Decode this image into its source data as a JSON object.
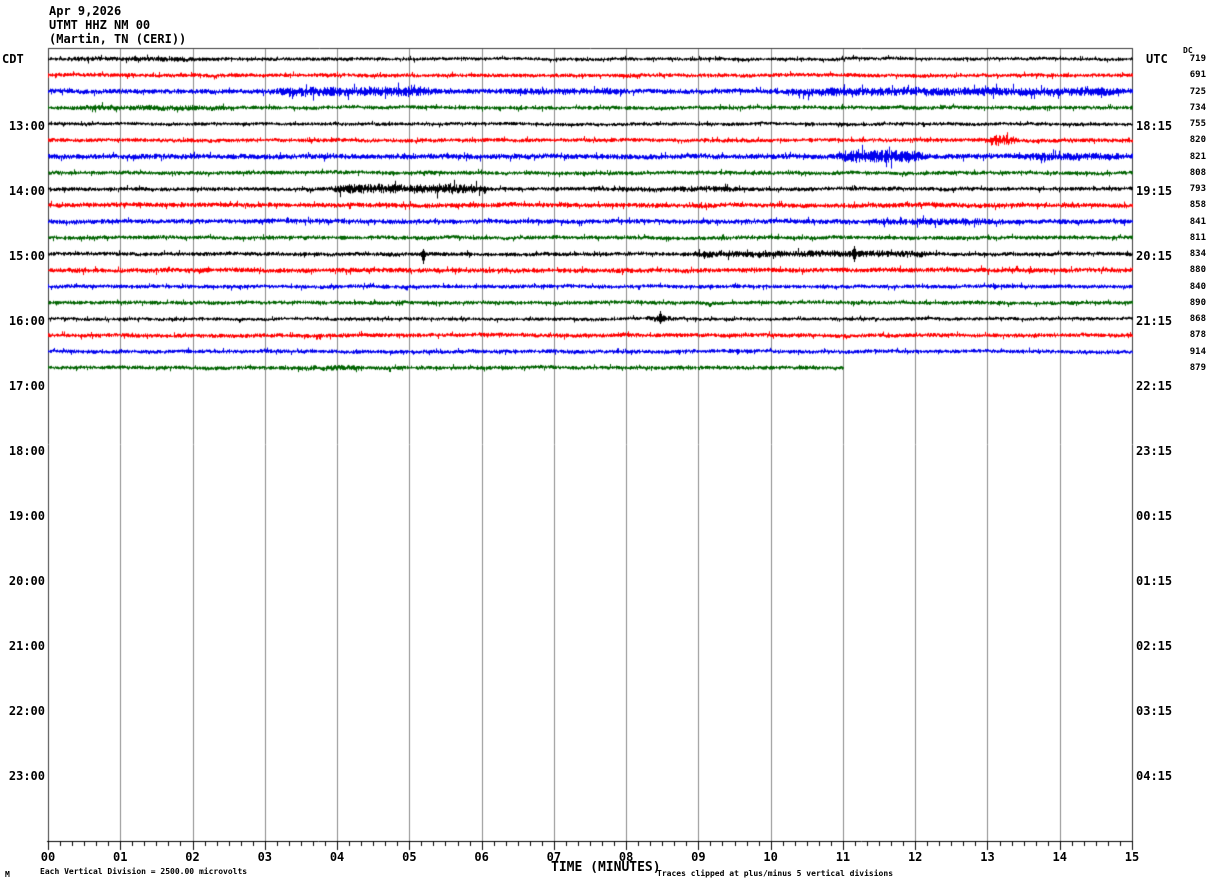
{
  "header": {
    "date": "Apr 9,2026",
    "station": "UTMT HHZ NM 00",
    "location": "(Martin, TN (CERI))"
  },
  "axis_labels": {
    "left": "CDT",
    "right": "UTC",
    "dc": "DC"
  },
  "x_axis": {
    "title": "TIME (MINUTES)",
    "ticks": [
      "00",
      "01",
      "02",
      "03",
      "04",
      "05",
      "06",
      "07",
      "08",
      "09",
      "10",
      "11",
      "12",
      "13",
      "14",
      "15"
    ]
  },
  "left_times": [
    "13:00",
    "14:00",
    "15:00",
    "16:00",
    "17:00",
    "18:00",
    "19:00",
    "20:00",
    "21:00",
    "22:00",
    "23:00"
  ],
  "right_times": [
    "18:15",
    "19:15",
    "20:15",
    "21:15",
    "22:15",
    "23:15",
    "00:15",
    "01:15",
    "02:15",
    "03:15",
    "04:15"
  ],
  "footer": {
    "watermark": "M",
    "division_note": "Each Vertical Division = 2500.00 microvolts",
    "clip_note": "Traces clipped at plus/minus 5 vertical divisions"
  },
  "colors": {
    "black": "#000000",
    "red": "#ff0000",
    "blue": "#0000ee",
    "green": "#006400",
    "grid": "#8a8a8a",
    "border": "#3a3a3a",
    "axis": "#000000"
  },
  "chart_data": {
    "type": "line",
    "title": "UTMT HHZ NM 00 (Martin, TN (CERI)) Apr 9,2026",
    "xlabel": "TIME (MINUTES)",
    "x_range_minutes": [
      0,
      15
    ],
    "minutes_per_row": 15,
    "grid": "vertical lines at each minute",
    "traces_clipped_at_divisions": 5,
    "microvolts_per_division": 2500.0,
    "hour_labels_cdt": [
      "13:00",
      "14:00",
      "15:00",
      "16:00",
      "17:00",
      "18:00",
      "19:00",
      "20:00",
      "21:00",
      "22:00",
      "23:00"
    ],
    "hour_labels_utc": [
      "18:15",
      "19:15",
      "20:15",
      "21:15",
      "22:15",
      "23:15",
      "00:15",
      "01:15",
      "02:15",
      "03:15",
      "04:15"
    ],
    "dc_values": [
      719,
      691,
      725,
      734,
      755,
      820,
      821,
      808,
      793,
      858,
      841,
      811,
      834,
      880,
      840,
      890,
      868,
      878,
      914,
      879
    ],
    "traces": [
      {
        "color": "black",
        "dc": 719,
        "start_min": 0,
        "end_min": 15,
        "amp": 1.3,
        "segments": [
          [
            0.2,
            2.2,
            1.4
          ]
        ],
        "spikes": []
      },
      {
        "color": "red",
        "dc": 691,
        "start_min": 0,
        "end_min": 15,
        "amp": 1.5,
        "segments": [],
        "spikes": []
      },
      {
        "color": "blue",
        "dc": 725,
        "start_min": 0,
        "end_min": 15,
        "amp": 1.9,
        "segments": [
          [
            3.1,
            5.4,
            1.9
          ],
          [
            6.3,
            8.0,
            1.3
          ],
          [
            10.2,
            14.9,
            1.7
          ]
        ],
        "spikes": []
      },
      {
        "color": "green",
        "dc": 734,
        "start_min": 0,
        "end_min": 15,
        "amp": 1.5,
        "segments": [
          [
            0.3,
            2.5,
            1.4
          ]
        ],
        "spikes": []
      },
      {
        "color": "black",
        "dc": 755,
        "start_min": 0,
        "end_min": 15,
        "amp": 1.3,
        "segments": [],
        "spikes": []
      },
      {
        "color": "red",
        "dc": 820,
        "start_min": 0,
        "end_min": 15,
        "amp": 1.5,
        "segments": [
          [
            12.95,
            13.45,
            3.0
          ]
        ],
        "spikes": []
      },
      {
        "color": "blue",
        "dc": 821,
        "start_min": 0,
        "end_min": 15,
        "amp": 2.0,
        "segments": [
          [
            10.9,
            12.15,
            2.4
          ],
          [
            13.5,
            14.9,
            1.5
          ]
        ],
        "spikes": []
      },
      {
        "color": "green",
        "dc": 808,
        "start_min": 0,
        "end_min": 15,
        "amp": 1.5,
        "segments": [],
        "spikes": []
      },
      {
        "color": "black",
        "dc": 793,
        "start_min": 0,
        "end_min": 15,
        "amp": 1.5,
        "segments": [
          [
            3.85,
            6.1,
            2.4
          ],
          [
            7.8,
            9.6,
            1.4
          ]
        ],
        "spikes": []
      },
      {
        "color": "red",
        "dc": 858,
        "start_min": 0,
        "end_min": 15,
        "amp": 1.8,
        "segments": [],
        "spikes": []
      },
      {
        "color": "blue",
        "dc": 841,
        "start_min": 0,
        "end_min": 15,
        "amp": 1.8,
        "segments": [
          [
            11.3,
            13.3,
            1.4
          ]
        ],
        "spikes": []
      },
      {
        "color": "green",
        "dc": 811,
        "start_min": 0,
        "end_min": 15,
        "amp": 1.5,
        "segments": [],
        "spikes": []
      },
      {
        "color": "black",
        "dc": 834,
        "start_min": 0,
        "end_min": 15,
        "amp": 1.5,
        "segments": [
          [
            8.9,
            12.3,
            1.7
          ]
        ],
        "spikes": [
          [
            5.19,
            5,
            10
          ],
          [
            9.08,
            3,
            5
          ],
          [
            11.15,
            8,
            8
          ]
        ]
      },
      {
        "color": "red",
        "dc": 880,
        "start_min": 0,
        "end_min": 15,
        "amp": 1.8,
        "segments": [],
        "spikes": []
      },
      {
        "color": "blue",
        "dc": 840,
        "start_min": 0,
        "end_min": 15,
        "amp": 1.5,
        "segments": [],
        "spikes": []
      },
      {
        "color": "green",
        "dc": 890,
        "start_min": 0,
        "end_min": 15,
        "amp": 1.5,
        "segments": [],
        "spikes": []
      },
      {
        "color": "black",
        "dc": 868,
        "start_min": 0,
        "end_min": 15,
        "amp": 1.3,
        "segments": [
          [
            8.25,
            8.7,
            2.0
          ]
        ],
        "spikes": [
          [
            8.47,
            8,
            5
          ]
        ]
      },
      {
        "color": "red",
        "dc": 878,
        "start_min": 0,
        "end_min": 15,
        "amp": 1.6,
        "segments": [],
        "spikes": []
      },
      {
        "color": "blue",
        "dc": 914,
        "start_min": 0,
        "end_min": 15,
        "amp": 1.5,
        "segments": [],
        "spikes": []
      },
      {
        "color": "green",
        "dc": 879,
        "start_min": 0,
        "end_min": 11,
        "amp": 1.5,
        "segments": [
          [
            3.4,
            4.4,
            1.4
          ]
        ],
        "spikes": []
      }
    ]
  }
}
